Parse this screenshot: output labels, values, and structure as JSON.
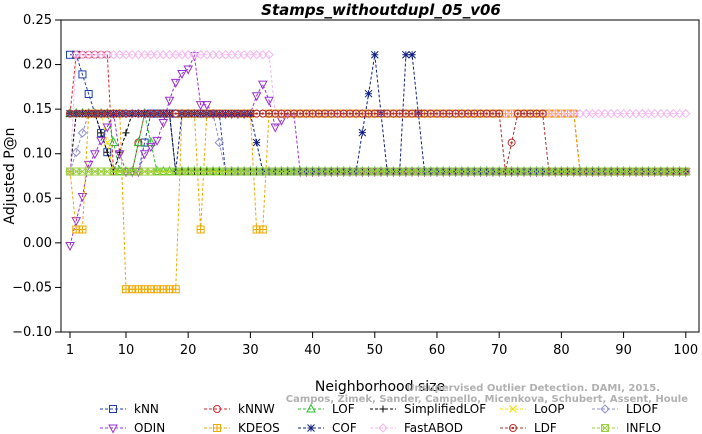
{
  "chart_data": {
    "type": "line",
    "title": "Stamps_withoutdupl_05_v06",
    "xlabel": "Neighborhood size",
    "ylabel": "Adjusted P@n",
    "xlim": [
      0,
      100
    ],
    "ylim": [
      -0.1,
      0.25
    ],
    "xticks": [
      1,
      10,
      20,
      30,
      40,
      50,
      60,
      70,
      80,
      90,
      100
    ],
    "yticks": [
      -0.1,
      -0.05,
      0.0,
      0.05,
      0.1,
      0.15,
      0.2,
      0.25
    ],
    "ytick_labels": [
      "−0.10",
      "−0.05",
      "0.00",
      "0.05",
      "0.10",
      "0.15",
      "0.20",
      "0.25"
    ],
    "grid": false,
    "legend_position": "bottom",
    "watermark": {
      "line1": "Unsupervised Outlier Detection. DAMI, 2015.",
      "line2": "Campos, Zimek, Sander, Campello, Micenkova, Schubert, Assent, Houle"
    },
    "series": [
      {
        "name": "kNN",
        "color": "#1f3fb0",
        "marker": "square",
        "segments": [
          [
            1,
            0.211
          ],
          [
            2,
            0.211
          ],
          [
            5,
            0.145
          ],
          [
            8,
            0.08
          ],
          [
            12,
            0.08
          ],
          [
            14,
            0.145
          ],
          [
            25,
            0.145
          ],
          [
            26,
            0.08
          ],
          [
            100,
            0.08
          ]
        ]
      },
      {
        "name": "kNNW",
        "color": "#d9262b",
        "marker": "circle",
        "segments": [
          [
            1,
            0.145
          ],
          [
            2,
            0.211
          ],
          [
            7,
            0.211
          ],
          [
            8,
            0.08
          ],
          [
            11,
            0.08
          ],
          [
            13,
            0.145
          ],
          [
            82,
            0.145
          ],
          [
            83,
            0.08
          ],
          [
            100,
            0.08
          ]
        ]
      },
      {
        "name": "LOF",
        "color": "#2bbd2b",
        "marker": "triangle-up",
        "segments": [
          [
            1,
            0.145
          ],
          [
            7,
            0.145
          ],
          [
            9,
            0.08
          ],
          [
            11,
            0.08
          ],
          [
            13,
            0.145
          ],
          [
            15,
            0.08
          ],
          [
            100,
            0.08
          ]
        ]
      },
      {
        "name": "SimplifiedLOF",
        "color": "#000000",
        "marker": "plus",
        "segments": [
          [
            1,
            0.08
          ],
          [
            2,
            0.145
          ],
          [
            5,
            0.145
          ],
          [
            8,
            0.08
          ],
          [
            11,
            0.145
          ],
          [
            17,
            0.145
          ],
          [
            18,
            0.08
          ],
          [
            100,
            0.08
          ]
        ]
      },
      {
        "name": "LoOP",
        "color": "#f0e000",
        "marker": "x",
        "segments": [
          [
            1,
            0.145
          ],
          [
            6,
            0.145
          ],
          [
            8,
            0.08
          ],
          [
            100,
            0.08
          ]
        ]
      },
      {
        "name": "LDOF",
        "color": "#9090d0",
        "marker": "diamond",
        "segments": [
          [
            1,
            0.08
          ],
          [
            4,
            0.145
          ],
          [
            24,
            0.145
          ],
          [
            26,
            0.08
          ],
          [
            100,
            0.08
          ]
        ]
      },
      {
        "name": "ODIN",
        "color": "#9b30d0",
        "marker": "triangle-down",
        "segments": [
          [
            1,
            -0.003
          ],
          [
            2,
            0.025
          ],
          [
            3,
            0.052
          ],
          [
            4,
            0.088
          ],
          [
            5,
            0.1
          ],
          [
            6,
            0.115
          ],
          [
            7,
            0.13
          ],
          [
            8,
            0.145
          ],
          [
            9,
            0.1
          ],
          [
            10,
            0.08
          ],
          [
            12,
            0.08
          ],
          [
            13,
            0.1
          ],
          [
            14,
            0.108
          ],
          [
            15,
            0.115
          ],
          [
            16,
            0.135
          ],
          [
            17,
            0.16
          ],
          [
            18,
            0.18
          ],
          [
            19,
            0.19
          ],
          [
            20,
            0.195
          ],
          [
            21,
            0.21
          ],
          [
            22,
            0.155
          ],
          [
            23,
            0.155
          ],
          [
            24,
            0.145
          ],
          [
            30,
            0.145
          ],
          [
            31,
            0.165
          ],
          [
            32,
            0.178
          ],
          [
            33,
            0.16
          ],
          [
            34,
            0.13
          ],
          [
            36,
            0.145
          ],
          [
            37,
            0.145
          ],
          [
            38,
            0.08
          ],
          [
            100,
            0.08
          ]
        ]
      },
      {
        "name": "KDEOS",
        "color": "#f0a800",
        "marker": "square-cross",
        "segments": [
          [
            1,
            0.08
          ],
          [
            2,
            0.015
          ],
          [
            3,
            0.015
          ],
          [
            4,
            0.145
          ],
          [
            9,
            0.145
          ],
          [
            10,
            -0.052
          ],
          [
            18,
            -0.052
          ],
          [
            19,
            0.145
          ],
          [
            21,
            0.145
          ],
          [
            22,
            0.015
          ],
          [
            23,
            0.145
          ],
          [
            30,
            0.145
          ],
          [
            31,
            0.015
          ],
          [
            32,
            0.015
          ],
          [
            33,
            0.145
          ],
          [
            82,
            0.145
          ],
          [
            83,
            0.08
          ],
          [
            100,
            0.08
          ]
        ]
      },
      {
        "name": "COF",
        "color": "#102080",
        "marker": "asterisk",
        "segments": [
          [
            1,
            0.145
          ],
          [
            17,
            0.145
          ],
          [
            18,
            0.08
          ],
          [
            19,
            0.145
          ],
          [
            30,
            0.145
          ],
          [
            32,
            0.08
          ],
          [
            47,
            0.08
          ],
          [
            50,
            0.211
          ],
          [
            52,
            0.08
          ],
          [
            54,
            0.08
          ],
          [
            55,
            0.211
          ],
          [
            56,
            0.211
          ],
          [
            58,
            0.08
          ],
          [
            100,
            0.08
          ]
        ]
      },
      {
        "name": "FastABOD",
        "color": "#f2b8f0",
        "marker": "diamond",
        "segments": [
          [
            1,
            0.08
          ],
          [
            2,
            0.211
          ],
          [
            33,
            0.211
          ],
          [
            34,
            0.145
          ],
          [
            84,
            0.145
          ],
          [
            85,
            0.145
          ],
          [
            100,
            0.145
          ]
        ]
      },
      {
        "name": "LDF",
        "color": "#b03030",
        "marker": "circle-dot",
        "segments": [
          [
            1,
            0.145
          ],
          [
            70,
            0.145
          ],
          [
            71,
            0.08
          ],
          [
            73,
            0.145
          ],
          [
            77,
            0.145
          ],
          [
            78,
            0.08
          ],
          [
            100,
            0.08
          ]
        ]
      },
      {
        "name": "INFLO",
        "color": "#9ad040",
        "marker": "square-x",
        "segments": [
          [
            1,
            0.08
          ],
          [
            100,
            0.08
          ]
        ]
      }
    ]
  }
}
